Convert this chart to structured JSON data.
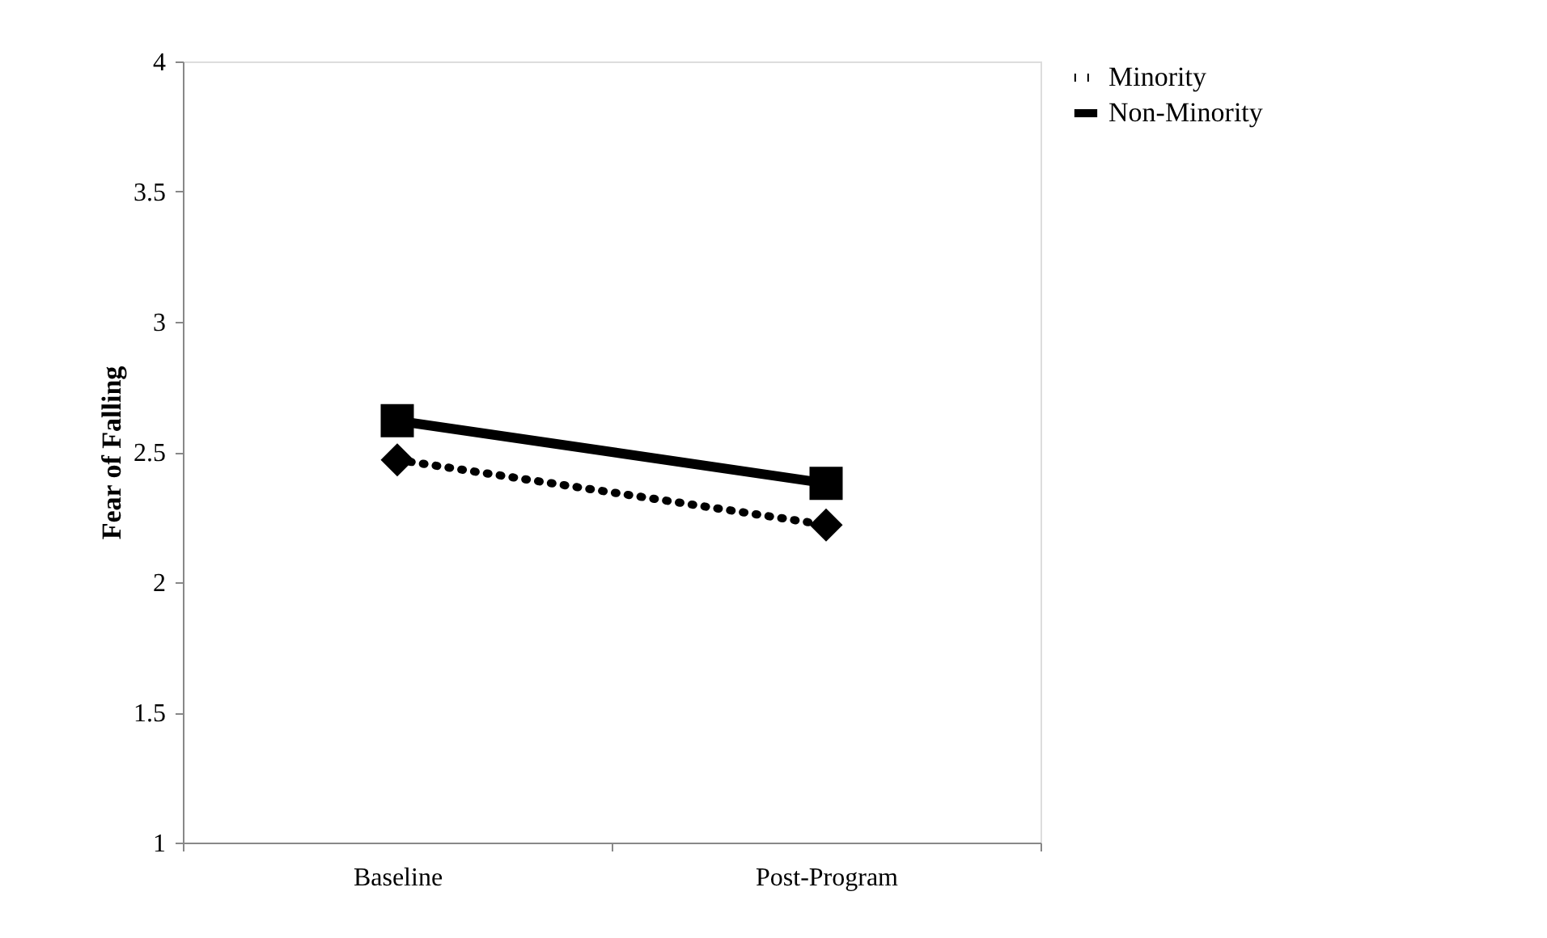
{
  "chart_data": {
    "type": "line",
    "ylabel": "Fear of Falling",
    "categories": [
      "Baseline",
      "Post-Program"
    ],
    "series": [
      {
        "name": "Minority",
        "color": "#000000",
        "values": [
          2.47,
          2.22
        ],
        "marker": "diamond",
        "line_style": "dotted"
      },
      {
        "name": "Non-Minority",
        "color": "#000000",
        "values": [
          2.62,
          2.38
        ],
        "marker": "square",
        "line_style": "solid"
      }
    ],
    "ylim": [
      1,
      4
    ],
    "yticks": [
      1,
      1.5,
      2,
      2.5,
      3,
      3.5,
      4
    ],
    "grid": false,
    "legend": "right"
  }
}
